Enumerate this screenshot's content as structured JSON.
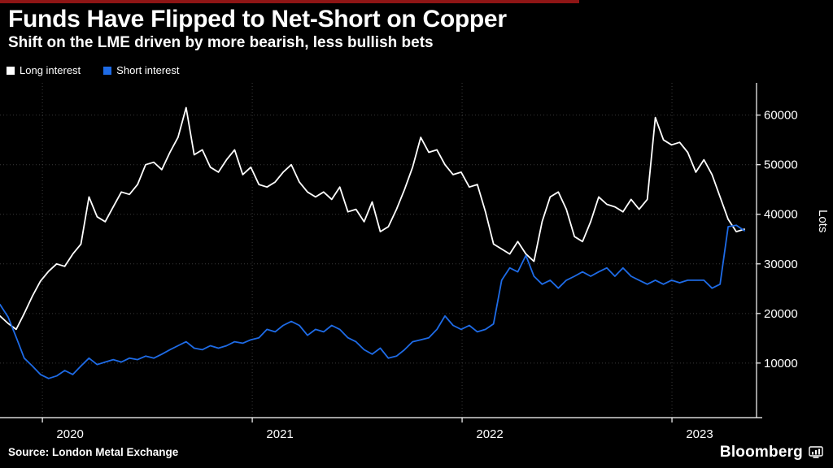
{
  "header": {
    "title": "Funds Have Flipped to Net-Short on Copper",
    "subtitle": "Shift on the LME driven by more bearish, less bullish bets"
  },
  "legend": [
    {
      "label": "Long interest",
      "color": "#ffffff"
    },
    {
      "label": "Short interest",
      "color": "#1e6be6"
    }
  ],
  "footer": {
    "source": "Source: London Metal Exchange",
    "brand": "Bloomberg"
  },
  "colors": {
    "background": "#000000",
    "grid": "#3a3a3a",
    "axis": "#ffffff",
    "accent": "#8e1515"
  },
  "chart_data": {
    "type": "line",
    "title": "Funds Have Flipped to Net-Short on Copper",
    "subtitle": "Shift on the LME driven by more bearish, less bullish bets",
    "ylabel": "Lots",
    "xlabel": "",
    "grid": true,
    "legend_position": "top-left",
    "xlim": [
      2019.798,
      2023.403
    ],
    "ylim": [
      -1000,
      66500
    ],
    "yticks": [
      10000,
      20000,
      30000,
      40000,
      50000,
      60000
    ],
    "xticks": [
      2020,
      2021,
      2022,
      2023
    ],
    "xtick_labels": [
      "2020",
      "2021",
      "2022",
      "2023"
    ],
    "x_start": 2019.798,
    "x_end": 2023.345,
    "series": [
      {
        "name": "Long interest",
        "color": "#ffffff",
        "values": [
          19500,
          18000,
          16800,
          20000,
          23500,
          26500,
          28500,
          30000,
          29500,
          32000,
          34000,
          43500,
          39500,
          38500,
          41500,
          44500,
          44000,
          46000,
          50000,
          50500,
          49000,
          52500,
          55500,
          61500,
          52000,
          53000,
          49500,
          48500,
          51000,
          53000,
          48000,
          49500,
          46000,
          45500,
          46500,
          48500,
          50000,
          46500,
          44500,
          43500,
          44500,
          43000,
          45500,
          40500,
          41000,
          38500,
          42500,
          36500,
          37500,
          41000,
          45000,
          49500,
          55500,
          52500,
          53000,
          50000,
          48000,
          48500,
          45500,
          46000,
          40500,
          34000,
          33000,
          32000,
          34500,
          32000,
          30500,
          38500,
          43500,
          44500,
          41000,
          35500,
          34500,
          38500,
          43500,
          42000,
          41500,
          40500,
          43000,
          41000,
          43000,
          59500,
          55000,
          54000,
          54500,
          52500,
          48500,
          51000,
          48000,
          43500,
          39000,
          36500,
          37000
        ]
      },
      {
        "name": "Short interest",
        "color": "#1e6be6",
        "values": [
          21800,
          19300,
          15200,
          11000,
          9400,
          7700,
          6900,
          7400,
          8500,
          7700,
          9400,
          11000,
          9700,
          10200,
          10700,
          10200,
          11000,
          10700,
          11400,
          11000,
          11800,
          12700,
          13500,
          14300,
          13000,
          12700,
          13500,
          13000,
          13500,
          14300,
          14000,
          14700,
          15100,
          16800,
          16300,
          17600,
          18400,
          17600,
          15600,
          16800,
          16300,
          17600,
          16800,
          15100,
          14300,
          12700,
          11800,
          13000,
          11000,
          11400,
          12700,
          14300,
          14700,
          15100,
          16800,
          19500,
          17600,
          16800,
          17600,
          16300,
          16800,
          17900,
          26700,
          29200,
          28400,
          31700,
          27500,
          25900,
          26700,
          25100,
          26700,
          27500,
          28400,
          27500,
          28400,
          29200,
          27500,
          29200,
          27500,
          26700,
          25900,
          26700,
          25900,
          26700,
          26200,
          26700,
          26700,
          26700,
          25100,
          25900,
          37500,
          37800,
          36700
        ]
      }
    ]
  }
}
